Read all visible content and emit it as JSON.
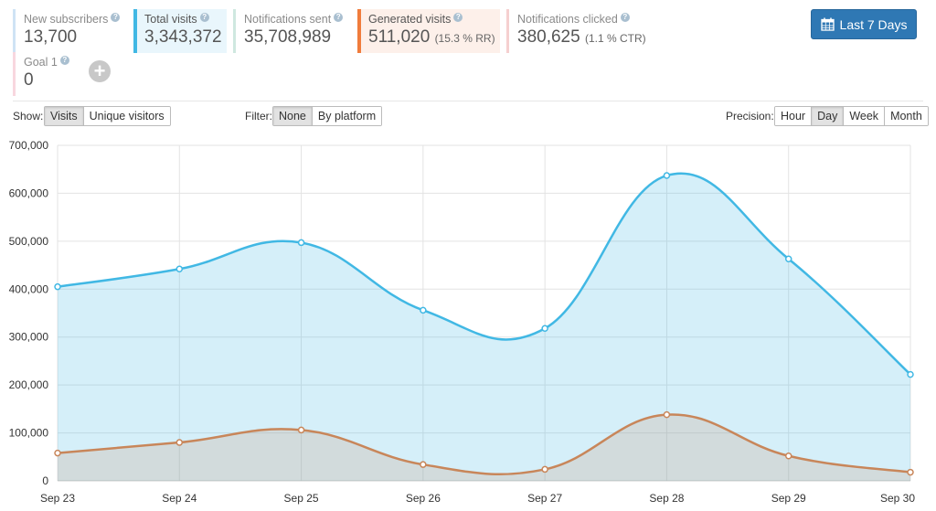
{
  "stats": {
    "new_subscribers": {
      "label": "New subscribers",
      "value": "13,700"
    },
    "total_visits": {
      "label": "Total visits",
      "value": "3,343,372"
    },
    "notifications_sent": {
      "label": "Notifications sent",
      "value": "35,708,989"
    },
    "generated_visits": {
      "label": "Generated visits",
      "value": "511,020",
      "sub": "(15.3 % RR)"
    },
    "notifications_clicked": {
      "label": "Notifications clicked",
      "value": "380,625",
      "sub": "(1.1 % CTR)"
    },
    "goal1": {
      "label": "Goal 1",
      "value": "0"
    }
  },
  "help_icon": "?",
  "add_goal_icon": "plus-circle-icon",
  "date_range": {
    "label": "Last 7 Days",
    "icon": "calendar-icon"
  },
  "controls": {
    "show": {
      "label": "Show:",
      "options": [
        "Visits",
        "Unique visitors"
      ],
      "selected": "Visits"
    },
    "filter": {
      "label": "Filter:",
      "options": [
        "None",
        "By platform"
      ],
      "selected": "None"
    },
    "precision": {
      "label": "Precision:",
      "options": [
        "Hour",
        "Day",
        "Week",
        "Month"
      ],
      "selected": "Day"
    }
  },
  "colors": {
    "new_subscribers": "#cfe3f5",
    "total_visits": "#41b8e4",
    "notifications_sent": "#cfe8e0",
    "generated_visits": "#f07c3c",
    "notifications_clicked": "#f5d0d0",
    "goal1": "#f8d7df",
    "series_total": "#41b8e4",
    "series_generated": "#c8865a"
  },
  "chart_data": {
    "type": "area",
    "categories": [
      "Sep 23",
      "Sep 24",
      "Sep 25",
      "Sep 26",
      "Sep 27",
      "Sep 28",
      "Sep 29",
      "Sep 30"
    ],
    "series": [
      {
        "name": "Total visits",
        "values": [
          405000,
          442000,
          497000,
          356000,
          318000,
          637000,
          463000,
          222000
        ]
      },
      {
        "name": "Generated visits",
        "values": [
          58000,
          80000,
          106000,
          34000,
          24000,
          138000,
          52000,
          18000
        ]
      }
    ],
    "ylim": [
      0,
      700000
    ],
    "yticks": [
      0,
      100000,
      200000,
      300000,
      400000,
      500000,
      600000,
      700000
    ],
    "ytick_labels": [
      "0",
      "100,000",
      "200,000",
      "300,000",
      "400,000",
      "500,000",
      "600,000",
      "700,000"
    ],
    "grid": true
  }
}
